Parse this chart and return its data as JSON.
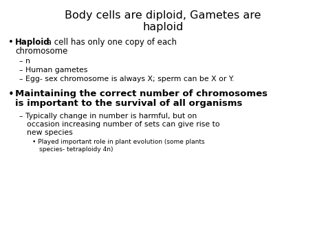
{
  "title_line1": "Body cells are diploid, Gametes are",
  "title_line2": "haploid",
  "background_color": "#ffffff",
  "text_color": "#000000",
  "title_fontsize": 11.5,
  "body_fontsize": 8.5,
  "sub_fontsize": 7.8,
  "subsub_fontsize": 6.5,
  "bullet1_bold": "Haploid",
  "bullet1_normal": ": a cell has only one copy of each\nchromosome",
  "sub1_1": "n",
  "sub1_2": "Human gametes",
  "sub1_3": "Egg- sex chromosome is always X; sperm can be X or Y.",
  "bullet2_line1": "Maintaining the correct number of chromosomes",
  "bullet2_line2": "is important to the survival of all organisms",
  "sub2_1_line1": "Typically change in number is harmful, but on",
  "sub2_1_line2": "occasion increasing number of sets can give rise to",
  "sub2_1_line3": "new species",
  "sub2_1_sub1": "Played important role in plant evolution (some plants",
  "sub2_1_sub2": "species- tetraploidy 4n)"
}
